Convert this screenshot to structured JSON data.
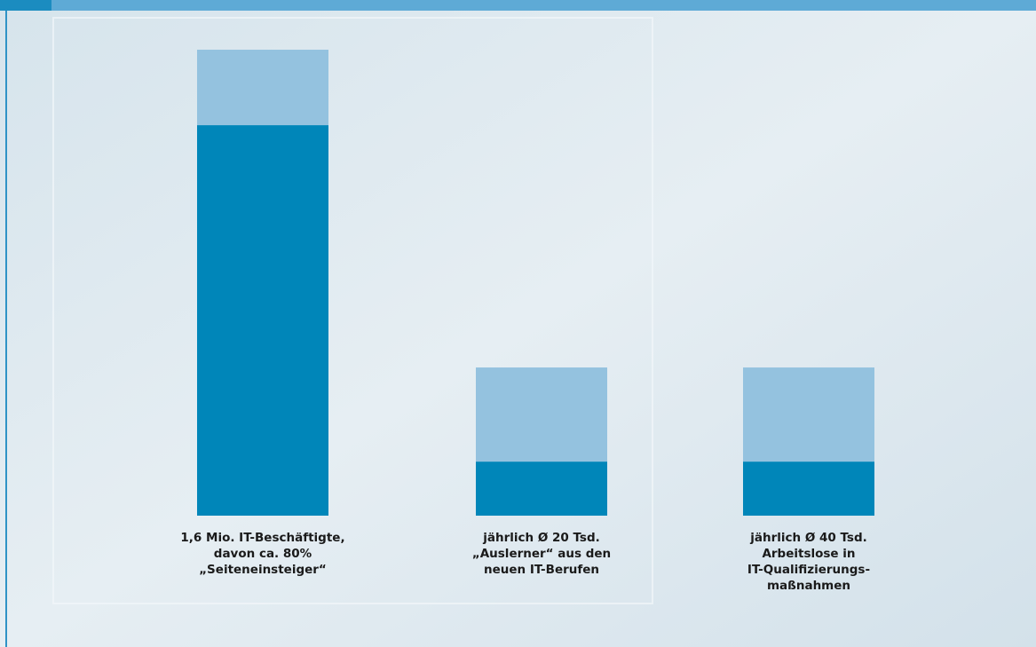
{
  "chart_data": {
    "type": "stacked-bar",
    "categories": [
      [
        "1,6 Mio. IT-Beschäftigte,",
        "davon ca. 80%",
        "„Seiteneinsteiger“"
      ],
      [
        "jährlich Ø 20 Tsd.",
        "„Auslerner“ aus den",
        "neuen IT-Berufen"
      ],
      [
        "jährlich Ø 40 Tsd.",
        "Arbeitslose in",
        "IT-Qualifizierungs-",
        "maßnahmen"
      ]
    ],
    "series": [
      {
        "color": "#0086b9",
        "values": [
          83.8,
          11.6,
          11.6
        ]
      },
      {
        "color": "#94c2df",
        "values": [
          16.2,
          20.2,
          20.2
        ]
      }
    ],
    "ylim": [
      0,
      100
    ]
  }
}
